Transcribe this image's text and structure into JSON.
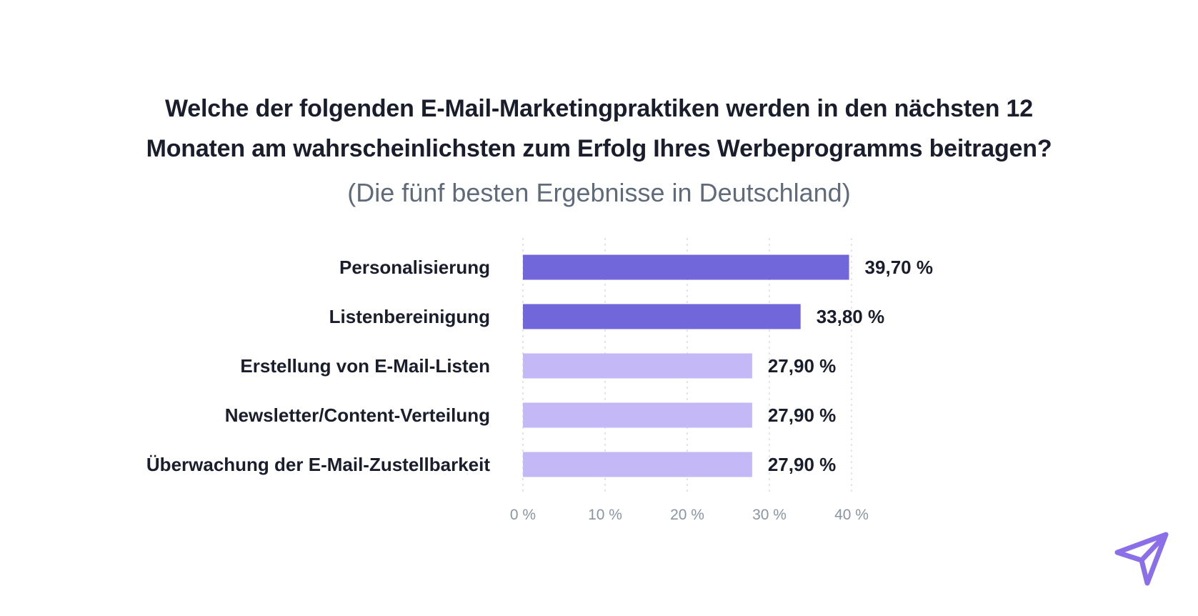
{
  "colors": {
    "bar_primary": "#7266db",
    "bar_secondary": "#c4b8f7",
    "grid": "#d7dbe2",
    "title": "#1a1d2b",
    "subtitle": "#5f6b7a",
    "tick": "#8a94a3",
    "logo": "#8a6fe8"
  },
  "logo_icon": "paper-plane-icon",
  "chart_data": {
    "type": "bar",
    "orientation": "horizontal",
    "title_line1": "Welche der folgenden E-Mail-Marketingpraktiken werden in den nächsten 12",
    "title_line2": "Monaten am wahrscheinlichsten zum Erfolg Ihres Werbeprogramms beitragen?",
    "subtitle": "(Die fünf besten Ergebnisse in Deutschland)",
    "categories": [
      "Personalisierung",
      "Listenbereinigung",
      "Erstellung von E-Mail-Listen",
      "Newsletter/Content-Verteilung",
      "Überwachung der E-Mail-Zustellbarkeit"
    ],
    "values": [
      39.7,
      33.8,
      27.9,
      27.9,
      27.9
    ],
    "value_labels": [
      "39,70 %",
      "33,80 %",
      "27,90 %",
      "27,90 %",
      "27,90 %"
    ],
    "highlight": [
      true,
      true,
      false,
      false,
      false
    ],
    "xlim": [
      0,
      40
    ],
    "xticks": [
      0,
      10,
      20,
      30,
      40
    ],
    "xtick_labels": [
      "0 %",
      "10 %",
      "20 %",
      "30 %",
      "40 %"
    ],
    "grid": true,
    "xlabel": "",
    "ylabel": ""
  }
}
